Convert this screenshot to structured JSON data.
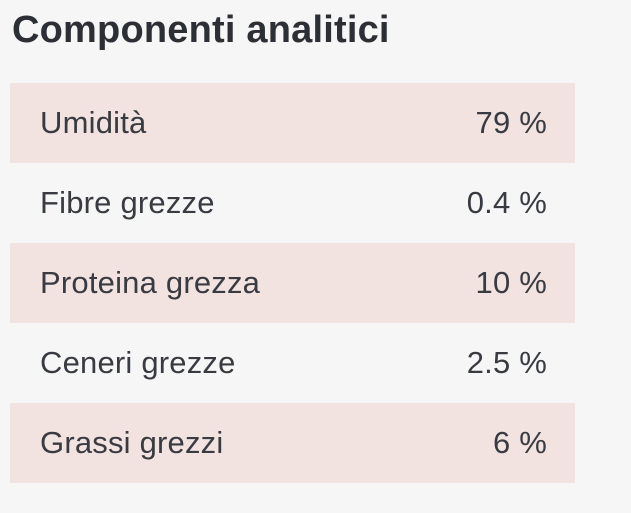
{
  "section": {
    "title": "Componenti analitici"
  },
  "table": {
    "rows": [
      {
        "label": "Umidità",
        "value": "79 %"
      },
      {
        "label": "Fibre grezze",
        "value": "0.4 %"
      },
      {
        "label": "Proteina grezza",
        "value": "10 %"
      },
      {
        "label": "Ceneri grezze",
        "value": "2.5 %"
      },
      {
        "label": "Grassi grezzi",
        "value": "6 %"
      }
    ]
  },
  "colors": {
    "page_bg": "#f7f6f6",
    "row_accent": "#f2e2e0",
    "title_color": "#2c2f36",
    "text_color": "#383b41"
  }
}
